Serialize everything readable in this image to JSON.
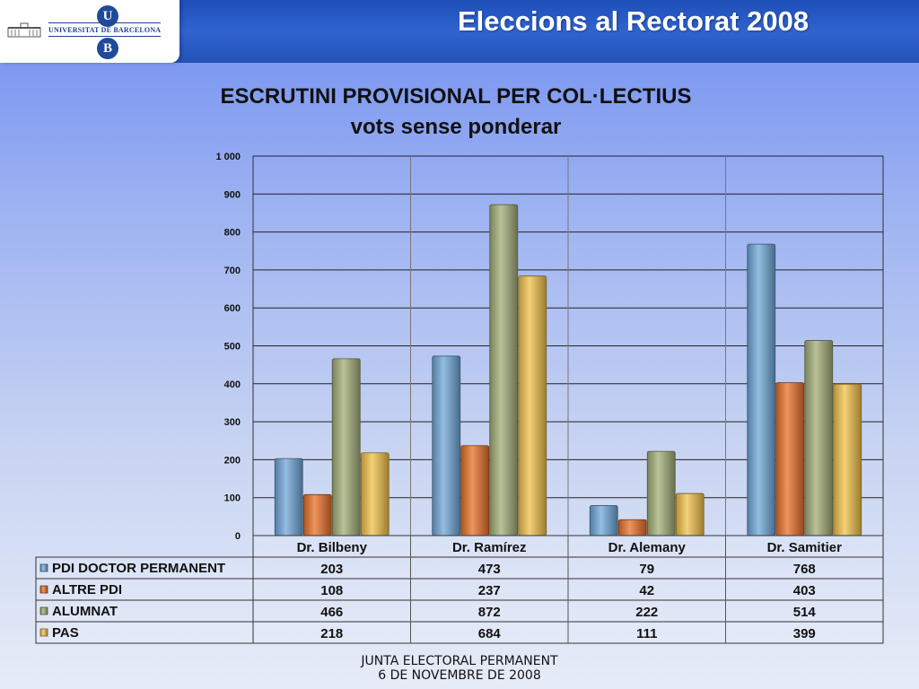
{
  "header": {
    "title": "Eleccions al Rectorat 2008",
    "logo_text": "UNIVERSITAT DE BARCELONA",
    "logo_letters": [
      "U",
      "B"
    ]
  },
  "footer": {
    "line1": "JUNTA ELECTORAL PERMANENT",
    "line2": "6 DE NOVEMBRE DE 2008"
  },
  "chart_data": {
    "type": "bar",
    "title": "ESCRUTINI PROVISIONAL PER COL·LECTIUS",
    "subtitle": "vots sense ponderar",
    "categories": [
      "Dr. Bilbeny",
      "Dr. Ramírez",
      "Dr. Alemany",
      "Dr. Samitier"
    ],
    "series": [
      {
        "name": "PDI DOCTOR PERMANENT",
        "values": [
          203,
          473,
          79,
          768
        ],
        "color": "#6fa7d8"
      },
      {
        "name": "ALTRE PDI",
        "values": [
          108,
          237,
          42,
          403
        ],
        "color": "#e8702a"
      },
      {
        "name": "ALUMNAT",
        "values": [
          466,
          872,
          222,
          514
        ],
        "color": "#a3ad78"
      },
      {
        "name": "PAS",
        "values": [
          218,
          684,
          111,
          399
        ],
        "color": "#f0c04a"
      }
    ],
    "ylim": [
      0,
      1000
    ],
    "yticks": [
      "0",
      "100",
      "200",
      "300",
      "400",
      "500",
      "600",
      "700",
      "800",
      "900",
      "1 000"
    ],
    "grid": true,
    "legend": "data table below chart"
  }
}
